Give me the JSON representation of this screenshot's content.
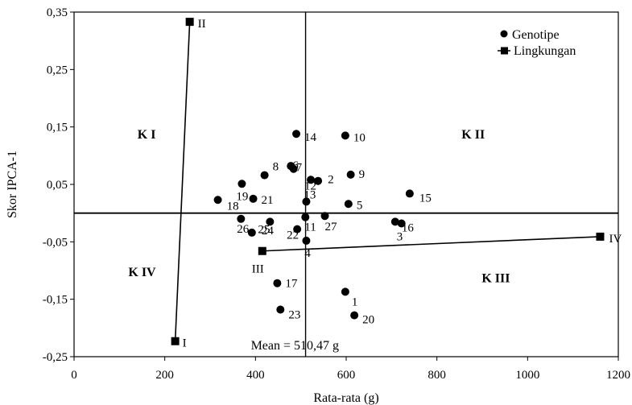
{
  "chart_data": {
    "type": "scatter",
    "xlabel": "Rata-rata (g)",
    "ylabel": "Skor IPCA-1",
    "xlim": [
      0,
      1200
    ],
    "ylim": [
      -0.25,
      0.35
    ],
    "x_ticks": [
      0,
      200,
      400,
      600,
      800,
      1000,
      1200
    ],
    "x_tick_labels": [
      "0",
      "200",
      "400",
      "600",
      "800",
      "1000",
      "1200"
    ],
    "y_ticks": [
      -0.25,
      -0.15,
      -0.05,
      0.05,
      0.15,
      0.25,
      0.35
    ],
    "y_tick_labels": [
      "-0,25",
      "-0,15",
      "-0,05",
      "0,05",
      "0,15",
      "0,25",
      "0,35"
    ],
    "grid": false,
    "reference_lines": {
      "x": 510.47,
      "y": 0
    },
    "mean_label": "Mean = 510,47 g",
    "legend": {
      "position": "top-right",
      "entries": [
        "Genotipe",
        "Lingkungan"
      ]
    },
    "quadrants": [
      {
        "label": "K I",
        "x": 160,
        "y": 0.13
      },
      {
        "label": "K II",
        "x": 880,
        "y": 0.13
      },
      {
        "label": "K III",
        "x": 930,
        "y": -0.12
      },
      {
        "label": "K IV",
        "x": 150,
        "y": -0.11
      }
    ],
    "series": [
      {
        "name": "Genotipe",
        "marker": "circle",
        "points": [
          {
            "label": "1",
            "x": 598,
            "y": -0.137
          },
          {
            "label": "2",
            "x": 538,
            "y": 0.056
          },
          {
            "label": "3",
            "x": 722,
            "y": -0.018
          },
          {
            "label": "4",
            "x": 512,
            "y": -0.048
          },
          {
            "label": "5",
            "x": 605,
            "y": 0.016
          },
          {
            "label": "6",
            "x": 478,
            "y": 0.082
          },
          {
            "label": "7",
            "x": 484,
            "y": 0.077
          },
          {
            "label": "8",
            "x": 420,
            "y": 0.066
          },
          {
            "label": "9",
            "x": 610,
            "y": 0.067
          },
          {
            "label": "10",
            "x": 598,
            "y": 0.135
          },
          {
            "label": "11",
            "x": 510,
            "y": -0.007
          },
          {
            "label": "12",
            "x": 522,
            "y": 0.058
          },
          {
            "label": "13",
            "x": 512,
            "y": 0.02
          },
          {
            "label": "14",
            "x": 490,
            "y": 0.138
          },
          {
            "label": "15",
            "x": 740,
            "y": 0.034
          },
          {
            "label": "16",
            "x": 708,
            "y": -0.015
          },
          {
            "label": "17",
            "x": 448,
            "y": -0.122
          },
          {
            "label": "18",
            "x": 317,
            "y": 0.023
          },
          {
            "label": "19",
            "x": 370,
            "y": 0.051
          },
          {
            "label": "20",
            "x": 618,
            "y": -0.178
          },
          {
            "label": "21",
            "x": 395,
            "y": 0.025
          },
          {
            "label": "22",
            "x": 492,
            "y": -0.028
          },
          {
            "label": "23",
            "x": 455,
            "y": -0.168
          },
          {
            "label": "24",
            "x": 392,
            "y": -0.034
          },
          {
            "label": "25",
            "x": 432,
            "y": -0.015
          },
          {
            "label": "26",
            "x": 368,
            "y": -0.01
          },
          {
            "label": "27",
            "x": 553,
            "y": -0.005
          }
        ]
      },
      {
        "name": "Lingkungan",
        "marker": "square",
        "points": [
          {
            "label": "I",
            "x": 223,
            "y": -0.223
          },
          {
            "label": "II",
            "x": 255,
            "y": 0.333
          },
          {
            "label": "III",
            "x": 415,
            "y": -0.066
          },
          {
            "label": "IV",
            "x": 1160,
            "y": -0.041
          }
        ]
      }
    ]
  }
}
